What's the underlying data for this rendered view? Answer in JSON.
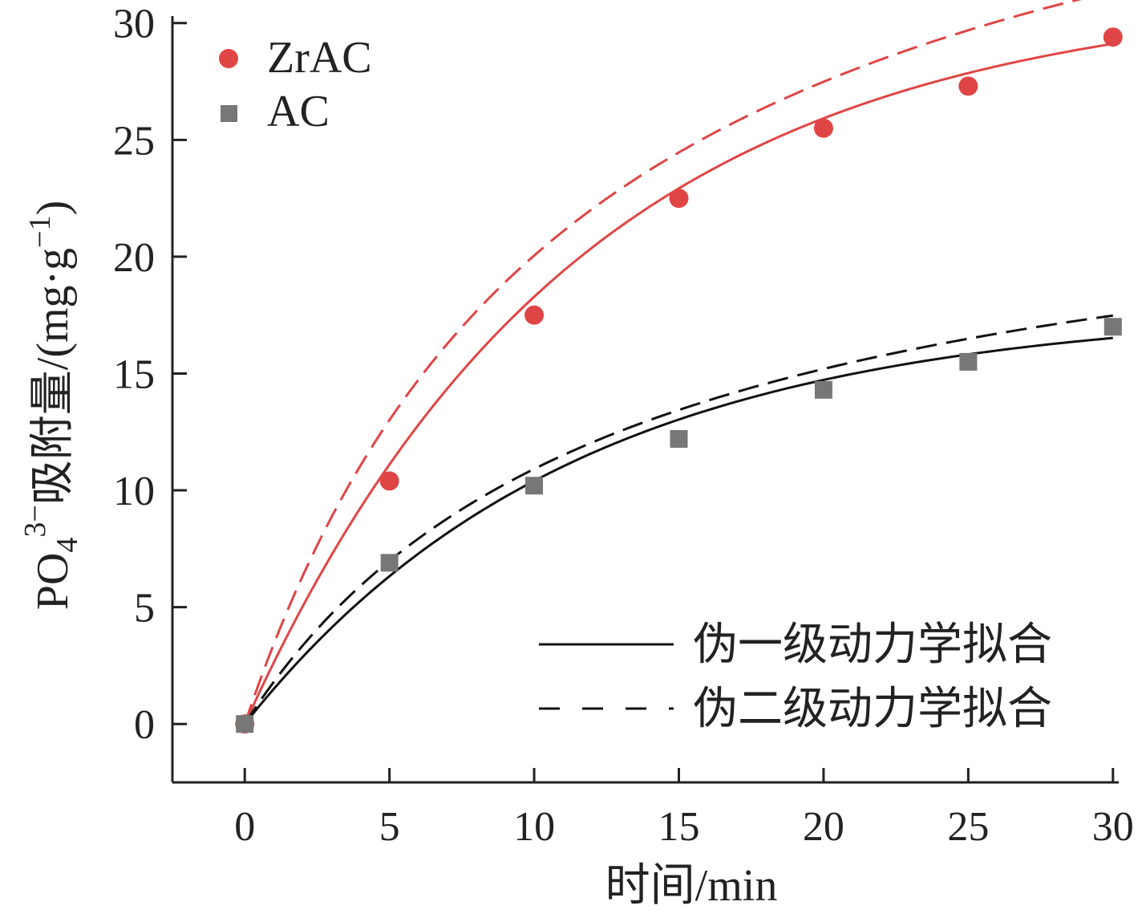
{
  "chart_data": {
    "type": "scatter",
    "xlabel": "时间/min",
    "ylabel": "PO₄³⁻吸附量/(mg·g⁻¹)",
    "xlim": [
      -2.5,
      30.2
    ],
    "ylim": [
      -2.5,
      30.3
    ],
    "xticks": [
      0,
      5,
      10,
      15,
      20,
      25,
      30
    ],
    "yticks": [
      0,
      5,
      10,
      15,
      20,
      25,
      30
    ],
    "x": [
      0,
      5,
      10,
      15,
      20,
      25,
      30
    ],
    "series": [
      {
        "name": "ZrAC",
        "marker": "circle",
        "color": "#e04545",
        "values": [
          0,
          10.4,
          17.5,
          22.5,
          25.5,
          27.3,
          29.4
        ]
      },
      {
        "name": "AC",
        "marker": "square",
        "color": "#777777",
        "values": [
          0,
          6.9,
          10.2,
          12.2,
          14.3,
          15.5,
          17.0
        ]
      }
    ],
    "fits": [
      {
        "name": "伪一级动力学拟合",
        "style": "solid",
        "for": "ZrAC",
        "color": "#e04545",
        "model": "pseudo-first-order",
        "qe": 31.4,
        "k": 0.0873
      },
      {
        "name": "伪一级动力学拟合",
        "style": "solid",
        "for": "AC",
        "color": "#111111",
        "model": "pseudo-first-order",
        "qe": 17.8,
        "k": 0.0878
      },
      {
        "name": "伪二级动力学拟合",
        "style": "dashed",
        "for": "ZrAC",
        "color": "#e04545",
        "model": "pseudo-second-order",
        "qe": 43.7,
        "k": 0.00194
      },
      {
        "name": "伪二级动力学拟合",
        "style": "dashed",
        "for": "AC",
        "color": "#111111",
        "model": "pseudo-second-order",
        "qe": 25.0,
        "k": 0.0031
      }
    ],
    "legend_series_position": "top-left",
    "legend_fits_position": "bottom-right",
    "grid": false
  },
  "axis_labels": {
    "x_title": "时间/min",
    "y_title_main": "PO",
    "y_title_sub": "4",
    "y_title_sup": "3−",
    "y_title_rest": "吸附量/(mg·g",
    "y_title_sup2": "−1",
    "y_title_end": ")"
  },
  "legend": {
    "series": [
      {
        "label": "ZrAC",
        "marker": "circle",
        "color": "#e04545"
      },
      {
        "label": "AC",
        "marker": "square",
        "color": "#777777"
      }
    ],
    "fits": [
      {
        "label": "伪一级动力学拟合",
        "style": "solid"
      },
      {
        "label": "伪二级动力学拟合",
        "style": "dashed"
      }
    ]
  }
}
